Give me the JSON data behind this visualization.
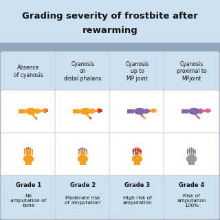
{
  "title_line1": "Grading severity of frostbite after",
  "title_line2": "rewarming",
  "title_bg": "#cce0f0",
  "grid_bg": "#8fa8be",
  "cell_bg": "#cce0f0",
  "top_labels": [
    "Absence\nof cyanosis",
    "Cyanosis\non\ndistal phalanx",
    "Cyanosis\nup to\nMP joint",
    "Cyanosis\nproximal to\nMPjoint"
  ],
  "bottom_grade": [
    "Grade 1",
    "Grade 2",
    "Grade 3",
    "Grade 4"
  ],
  "bottom_text": [
    "No\namputation of\nbone",
    "Moderate risk\nof amputation",
    "High risk of\namputation",
    "Risk of\namputation\n100%"
  ],
  "hand_base": "#f5a020",
  "hand_red": "#cc2200",
  "hand_purple": "#8866aa",
  "hand_pink": "#e06090",
  "foot_base": "#f5a020",
  "foot_gray": "#999999",
  "hand_configs": [
    {
      "base": "#f5a020",
      "tip": "#cc2200",
      "extent": 0.08
    },
    {
      "base": "#f5a020",
      "tip": "#cc2200",
      "extent": 0.22
    },
    {
      "base": "#8866aa",
      "tip": "#f5a020",
      "extent": 0.45,
      "palm_tip": "#8866aa"
    },
    {
      "base": "#8866aa",
      "tip": "#e06090",
      "extent": 0.8,
      "palm_tip": "#8866aa"
    }
  ],
  "foot_configs": [
    {
      "base": "#f5a020",
      "tip": "#cc2200",
      "extent": 0.15
    },
    {
      "base": "#f5a020",
      "tip": "#8866aa",
      "extent": 0.38
    },
    {
      "base": "#f5a020",
      "tip": "#cc2200",
      "extent": 0.65,
      "mid_purple": true
    },
    {
      "base": "#999999",
      "tip": "#888888",
      "extent": 0.9
    }
  ]
}
